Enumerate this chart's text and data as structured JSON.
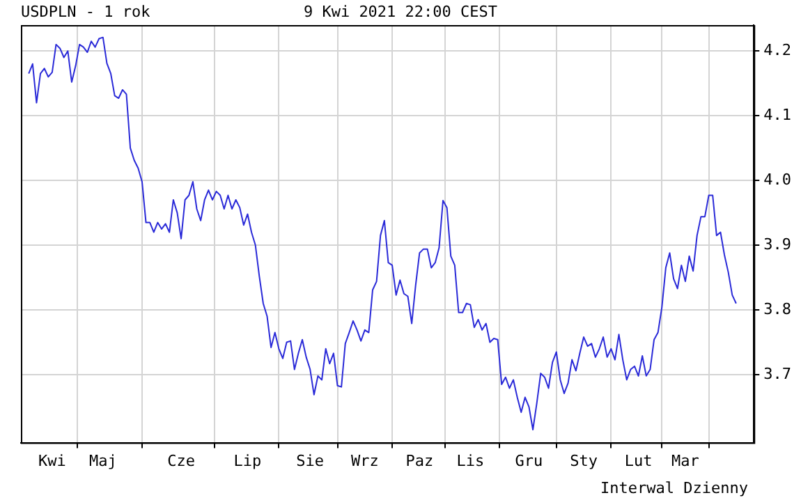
{
  "chart_data": {
    "type": "line",
    "title": "USDPLN - 1 rok",
    "subtitle": "9 Kwi 2021 22:00 CEST",
    "annotations": [
      "Interwal Dzienny"
    ],
    "categories": [
      null,
      null,
      null,
      null,
      null,
      null,
      "Kwi",
      null,
      null,
      null,
      null,
      null,
      null,
      null,
      null,
      null,
      null,
      null,
      null,
      "Maj",
      null,
      null,
      null,
      null,
      null,
      null,
      null,
      null,
      null,
      null,
      null,
      null,
      null,
      null,
      null,
      null,
      null,
      null,
      null,
      "Cze",
      null,
      null,
      null,
      null,
      null,
      null,
      null,
      null,
      null,
      null,
      null,
      null,
      null,
      null,
      null,
      null,
      "Lip",
      null,
      null,
      null,
      null,
      null,
      null,
      null,
      null,
      null,
      null,
      null,
      null,
      null,
      null,
      null,
      "Sie",
      null,
      null,
      null,
      null,
      null,
      null,
      null,
      null,
      null,
      null,
      null,
      null,
      null,
      "Wrz",
      null,
      null,
      null,
      null,
      null,
      null,
      null,
      null,
      null,
      null,
      null,
      null,
      null,
      "Paz",
      null,
      null,
      null,
      null,
      null,
      null,
      null,
      null,
      null,
      null,
      null,
      null,
      "Lis",
      null,
      null,
      null,
      null,
      null,
      null,
      null,
      null,
      null,
      null,
      null,
      null,
      null,
      null,
      "Gru",
      null,
      null,
      null,
      null,
      null,
      null,
      null,
      null,
      null,
      null,
      null,
      null,
      null,
      "Sty",
      null,
      null,
      null,
      null,
      null,
      null,
      null,
      null,
      null,
      null,
      null,
      null,
      null,
      "Lut",
      null,
      null,
      null,
      null,
      null,
      null,
      null,
      null,
      null,
      null,
      null,
      "Mar",
      null,
      null,
      null,
      null,
      null,
      null,
      null,
      null,
      null,
      null,
      null,
      null,
      null
    ],
    "series": [
      {
        "color": "#2a2ad8",
        "values": [
          4.165,
          4.18,
          4.12,
          4.165,
          4.173,
          4.16,
          4.167,
          4.21,
          4.204,
          4.19,
          4.2,
          4.152,
          4.177,
          4.21,
          4.206,
          4.198,
          4.215,
          4.206,
          4.219,
          4.221,
          4.181,
          4.165,
          4.131,
          4.127,
          4.14,
          4.133,
          4.05,
          4.031,
          4.019,
          3.998,
          3.935,
          3.935,
          3.92,
          3.935,
          3.925,
          3.933,
          3.92,
          3.97,
          3.95,
          3.91,
          3.97,
          3.977,
          3.998,
          3.956,
          3.938,
          3.97,
          3.985,
          3.97,
          3.983,
          3.977,
          3.956,
          3.977,
          3.956,
          3.97,
          3.958,
          3.931,
          3.948,
          3.92,
          3.9,
          3.852,
          3.81,
          3.79,
          3.742,
          3.765,
          3.74,
          3.725,
          3.75,
          3.752,
          3.708,
          3.733,
          3.754,
          3.727,
          3.708,
          3.669,
          3.698,
          3.692,
          3.74,
          3.717,
          3.733,
          3.683,
          3.681,
          3.748,
          3.765,
          3.783,
          3.769,
          3.752,
          3.769,
          3.765,
          3.831,
          3.844,
          3.915,
          3.938,
          3.873,
          3.869,
          3.823,
          3.846,
          3.825,
          3.821,
          3.779,
          3.838,
          3.888,
          3.894,
          3.894,
          3.865,
          3.873,
          3.896,
          3.969,
          3.958,
          3.883,
          3.869,
          3.796,
          3.796,
          3.81,
          3.808,
          3.773,
          3.785,
          3.769,
          3.779,
          3.75,
          3.756,
          3.754,
          3.685,
          3.696,
          3.679,
          3.692,
          3.665,
          3.642,
          3.665,
          3.65,
          3.615,
          3.656,
          3.702,
          3.696,
          3.679,
          3.719,
          3.735,
          3.692,
          3.671,
          3.687,
          3.723,
          3.706,
          3.733,
          3.758,
          3.744,
          3.748,
          3.727,
          3.74,
          3.758,
          3.727,
          3.74,
          3.723,
          3.762,
          3.723,
          3.692,
          3.708,
          3.713,
          3.698,
          3.729,
          3.698,
          3.708,
          3.754,
          3.765,
          3.804,
          3.865,
          3.888,
          3.848,
          3.833,
          3.869,
          3.844,
          3.883,
          3.86,
          3.915,
          3.944,
          3.944,
          3.977,
          3.977,
          3.915,
          3.92,
          3.885,
          3.858,
          3.823,
          3.81
        ]
      }
    ],
    "ylim": [
      3.595,
      4.24
    ],
    "yticks": [
      {
        "value": 3.7,
        "label": "3.7"
      },
      {
        "value": 3.8,
        "label": "3.8"
      },
      {
        "value": 3.9,
        "label": "3.9"
      },
      {
        "value": 4.0,
        "label": "4.0"
      },
      {
        "value": 4.1,
        "label": "4.1"
      },
      {
        "value": 4.2,
        "label": "4.2"
      }
    ],
    "grid": true,
    "legend": false,
    "marker": "none",
    "line_style": "solid"
  }
}
